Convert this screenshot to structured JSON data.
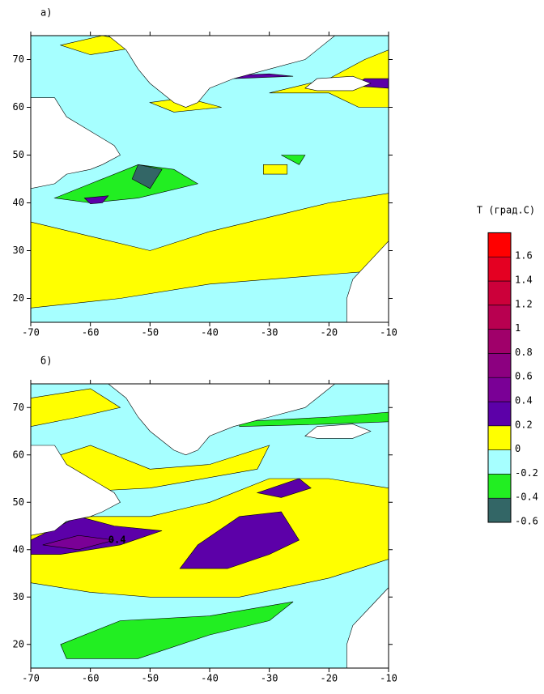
{
  "chart_data": [
    {
      "type": "contour",
      "label": "а)",
      "xlim": [
        -70,
        -10
      ],
      "ylim": [
        15,
        75
      ],
      "xticks": [
        -70,
        -60,
        -50,
        -40,
        -30,
        -20,
        -10
      ],
      "yticks": [
        20,
        30,
        40,
        50,
        60,
        70
      ]
    },
    {
      "type": "contour",
      "label": "б)",
      "xlim": [
        -70,
        -10
      ],
      "ylim": [
        15,
        75
      ],
      "xticks": [
        -70,
        -60,
        -50,
        -40,
        -30,
        -20,
        -10
      ],
      "yticks": [
        20,
        30,
        40,
        50,
        60,
        70
      ],
      "annotations": [
        "0.4"
      ]
    }
  ],
  "colorbar": {
    "title": "T (град.С)",
    "levels": [
      -0.6,
      -0.4,
      -0.2,
      0,
      0.2,
      0.4,
      0.6,
      0.8,
      1,
      1.2,
      1.4,
      1.6
    ],
    "colors": [
      "#336666",
      "#22ee22",
      "#a6ffff",
      "#ffff00",
      "#5c00a8",
      "#7a0096",
      "#8c0080",
      "#a0006a",
      "#b80050",
      "#cc003a",
      "#e40022",
      "#ff0000"
    ]
  }
}
